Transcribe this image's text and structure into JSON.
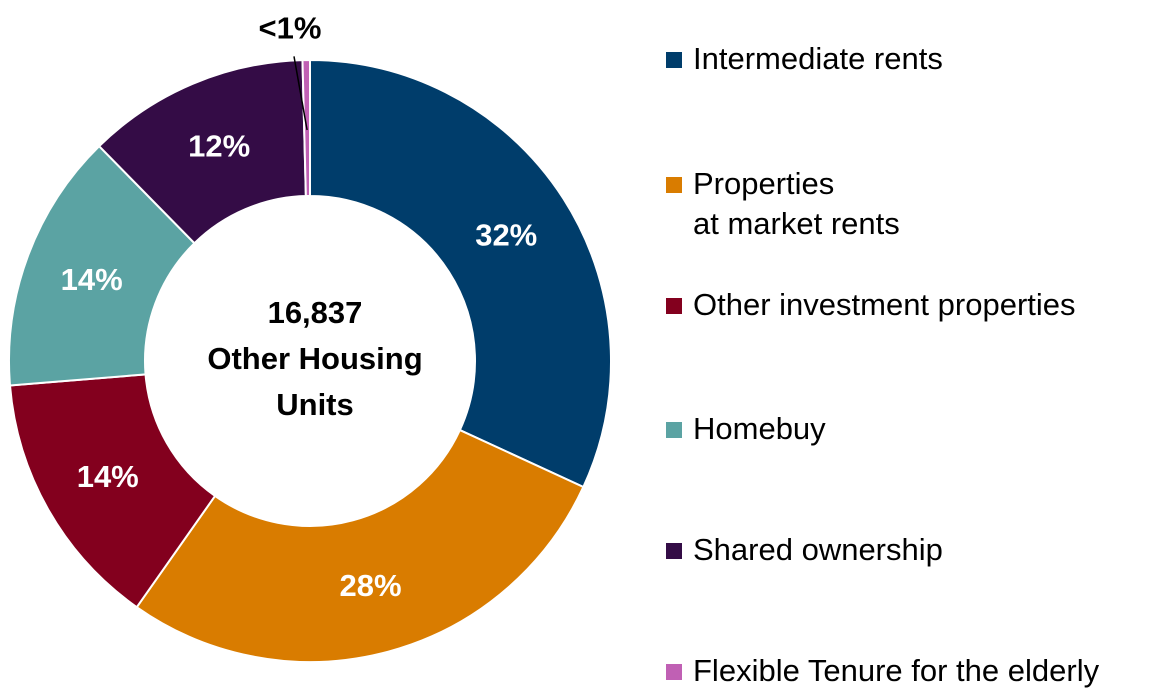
{
  "chart_data": {
    "type": "donut",
    "center_label": [
      "16,837",
      "Other Housing",
      "Units"
    ],
    "categories": [
      "Intermediate rents",
      "Properties\nat market rents",
      "Other investment properties",
      "Homebuy",
      "Shared ownership",
      "Flexible Tenure for the elderly"
    ],
    "values": [
      32,
      28,
      14,
      14,
      12,
      0.4
    ],
    "value_labels": [
      "32%",
      "28%",
      "14%",
      "14%",
      "12%",
      "<1%"
    ],
    "colors": [
      "#003d6b",
      "#d97c00",
      "#83001e",
      "#5ba3a3",
      "#340c46",
      "#c060b4"
    ],
    "legend": "right"
  }
}
